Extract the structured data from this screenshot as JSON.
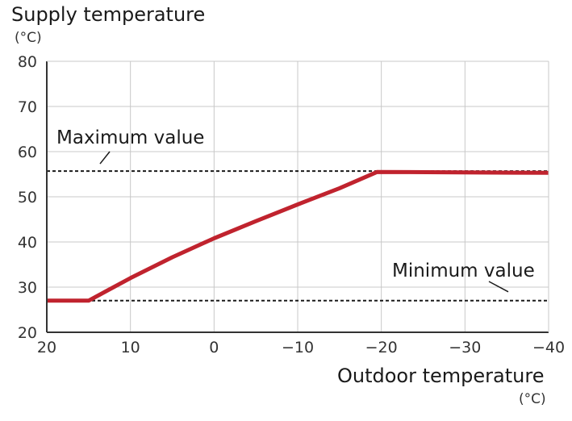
{
  "chart_data": {
    "type": "line",
    "title": "Supply temperature",
    "ylabel_unit": "(°C)",
    "xlabel": "Outdoor temperature",
    "xlabel_unit": "(°C)",
    "x_tick_labels": [
      "20",
      "10",
      "0",
      "−10",
      "−20",
      "−30",
      "−40"
    ],
    "x_ticks": [
      20,
      10,
      0,
      -10,
      -20,
      -30,
      -40
    ],
    "xlim": [
      20,
      -40
    ],
    "y_ticks": [
      20,
      30,
      40,
      50,
      60,
      70,
      80
    ],
    "ylim": [
      20,
      80
    ],
    "grid": true,
    "series": [
      {
        "name": "Supply temperature curve",
        "color": "#c0232e",
        "x": [
          20,
          15,
          10,
          5,
          0,
          -5,
          -10,
          -15,
          -19.5,
          -40
        ],
        "y": [
          27,
          27,
          32,
          36.6,
          40.8,
          44.6,
          48.3,
          51.9,
          55.5,
          55.3
        ]
      }
    ],
    "reference_lines": [
      {
        "name": "Maximum value",
        "label": "Maximum value",
        "y": 55.7
      },
      {
        "name": "Minimum value",
        "label": "Minimum value",
        "y": 27
      }
    ],
    "annotations": [
      {
        "text": "Maximum value",
        "points_to": "Maximum value"
      },
      {
        "text": "Minimum value",
        "points_to": "Minimum value"
      }
    ]
  }
}
